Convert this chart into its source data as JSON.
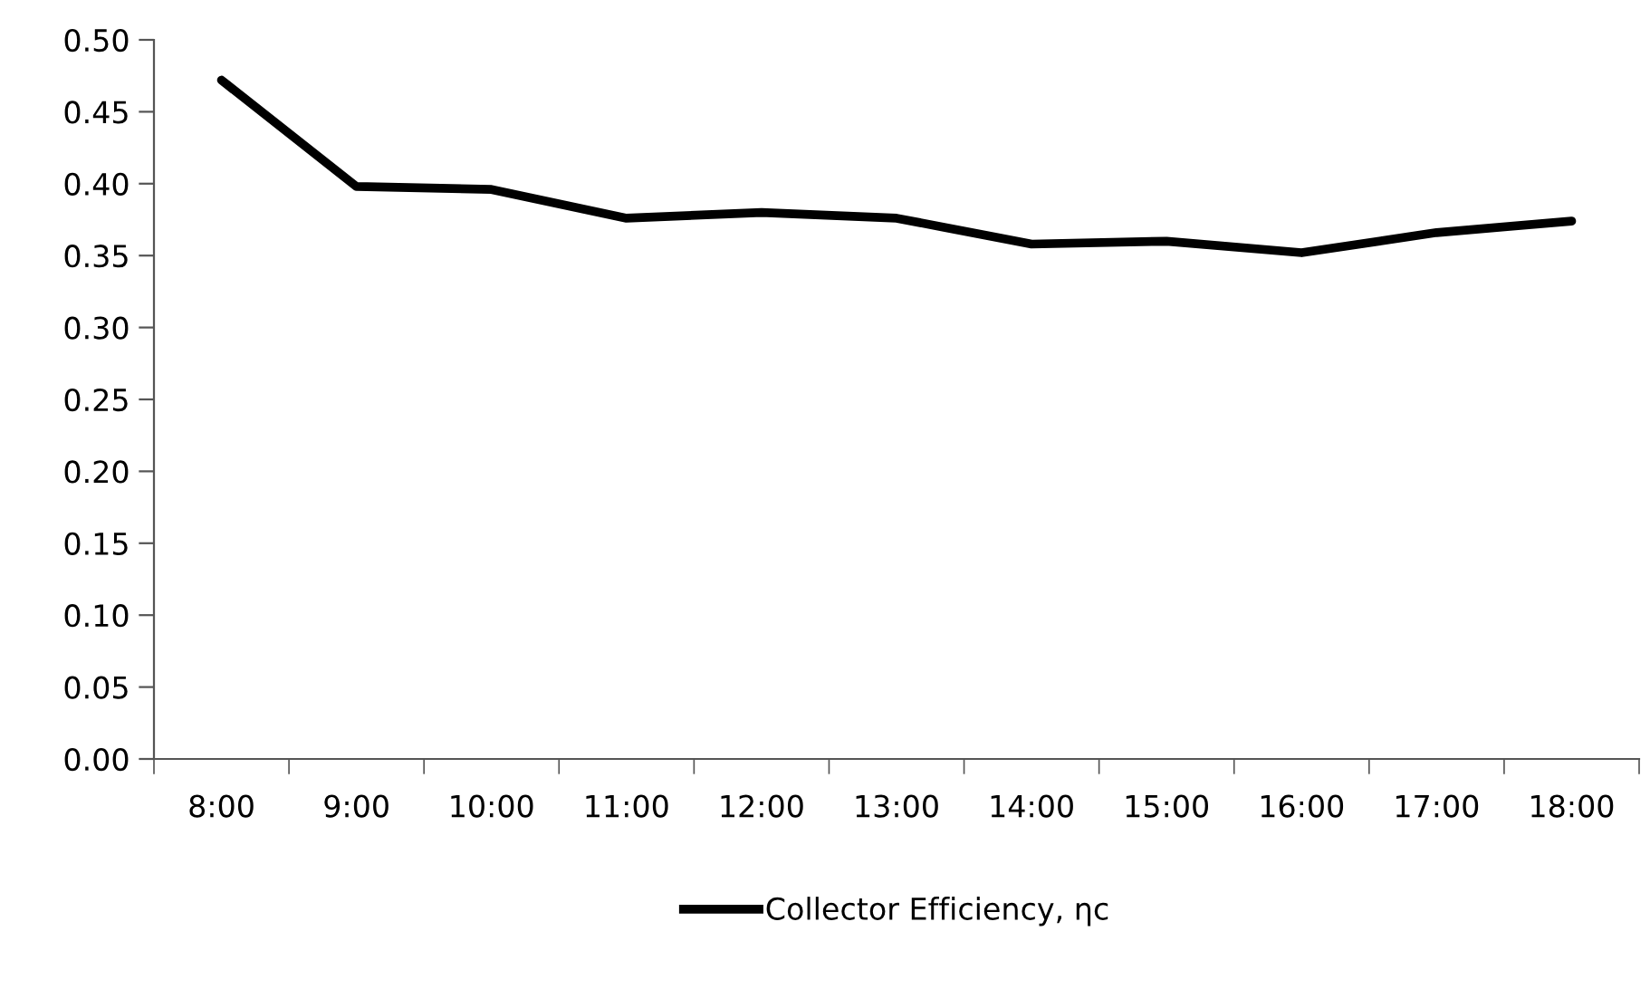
{
  "chart_data": {
    "type": "line",
    "categories": [
      "8:00",
      "9:00",
      "10:00",
      "11:00",
      "12:00",
      "13:00",
      "14:00",
      "15:00",
      "16:00",
      "17:00",
      "18:00"
    ],
    "series": [
      {
        "name": "Collector Efficiency, ηc",
        "color": "#000000",
        "values": [
          0.472,
          0.398,
          0.396,
          0.376,
          0.38,
          0.376,
          0.358,
          0.36,
          0.352,
          0.366,
          0.374
        ]
      }
    ],
    "ylim": [
      0,
      0.5
    ],
    "yticks": [
      {
        "value": 0,
        "label": "0.00"
      },
      {
        "value": 0.05,
        "label": "0.05"
      },
      {
        "value": 0.1,
        "label": "0.10"
      },
      {
        "value": 0.15,
        "label": "0.15"
      },
      {
        "value": 0.2,
        "label": "0.20"
      },
      {
        "value": 0.25,
        "label": "0.25"
      },
      {
        "value": 0.3,
        "label": "0.30"
      },
      {
        "value": 0.35,
        "label": "0.35"
      },
      {
        "value": 0.4,
        "label": "0.40"
      },
      {
        "value": 0.45,
        "label": "0.45"
      },
      {
        "value": 0.5,
        "label": "0.50"
      }
    ],
    "grid": false,
    "legend": "bottom",
    "marker": "none",
    "line_style": "solid"
  }
}
